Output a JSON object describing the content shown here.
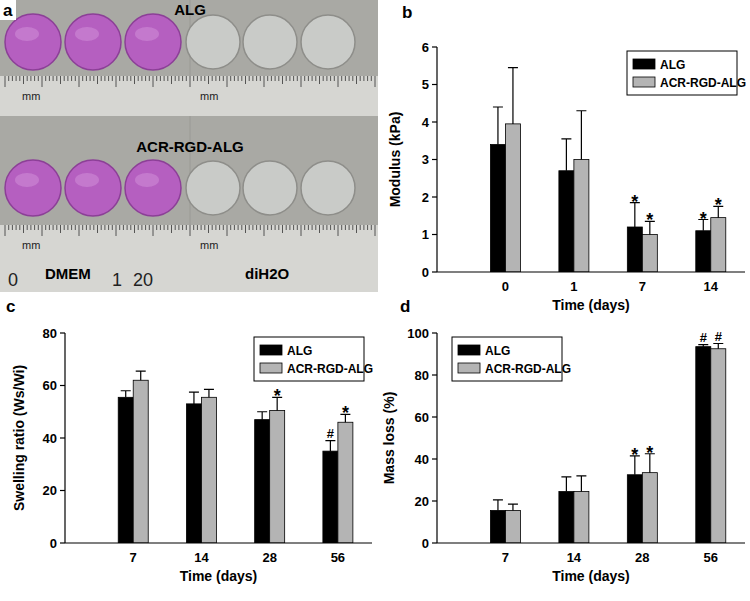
{
  "photo": {
    "title": "a",
    "samples": [
      "ALG",
      "ACR-RGD-ALG"
    ],
    "media": [
      "DMEM",
      "diH2O"
    ],
    "ruler_unit": "mm",
    "ruler_numbers": [
      "0",
      "1",
      "20"
    ]
  },
  "chart_data": [
    {
      "type": "bar",
      "title": "b",
      "x_label": "Time (days)",
      "y_label": "Modulus (kPa)",
      "categories": [
        "0",
        "1",
        "7",
        "14"
      ],
      "series": [
        {
          "name": "ALG",
          "color": "#000000",
          "values": [
            3.4,
            2.7,
            1.2,
            1.1
          ],
          "errors": [
            1.0,
            0.85,
            0.65,
            0.3
          ],
          "significance": [
            null,
            null,
            "*",
            "*"
          ]
        },
        {
          "name": "ACR-RGD-ALG",
          "color": "#b4b4b4",
          "values": [
            3.95,
            3.0,
            1.0,
            1.45
          ],
          "errors": [
            1.5,
            1.3,
            0.35,
            0.3
          ],
          "significance": [
            null,
            null,
            "*",
            "*"
          ]
        }
      ],
      "ylim": [
        0,
        6
      ],
      "yticks": [
        0,
        1,
        2,
        3,
        4,
        5,
        6
      ],
      "grid": false,
      "legend": "upper right"
    },
    {
      "type": "bar",
      "title": "c",
      "x_label": "Time (days)",
      "y_label": "Swelling ratio (Ws/Wi)",
      "categories": [
        "7",
        "14",
        "28",
        "56"
      ],
      "series": [
        {
          "name": "ALG",
          "color": "#000000",
          "values": [
            55.5,
            53,
            47,
            35
          ],
          "errors": [
            2.5,
            4.5,
            3,
            4
          ],
          "significance": [
            null,
            null,
            null,
            "#"
          ]
        },
        {
          "name": "ACR-RGD-ALG",
          "color": "#b4b4b4",
          "values": [
            62,
            55.5,
            50.5,
            46
          ],
          "errors": [
            3.5,
            3,
            5,
            3
          ],
          "significance": [
            null,
            null,
            "*",
            "*"
          ]
        }
      ],
      "ylim": [
        0,
        80
      ],
      "yticks": [
        0,
        20,
        40,
        60,
        80
      ],
      "grid": false,
      "legend": "upper right"
    },
    {
      "type": "bar",
      "title": "d",
      "x_label": "Time (days)",
      "y_label": "Mass loss (%)",
      "categories": [
        "7",
        "14",
        "28",
        "56"
      ],
      "series": [
        {
          "name": "ALG",
          "color": "#000000",
          "values": [
            15.5,
            24.5,
            32.5,
            93.5
          ],
          "errors": [
            5,
            7,
            9,
            1
          ],
          "significance": [
            null,
            null,
            "*",
            "#"
          ]
        },
        {
          "name": "ACR-RGD-ALG",
          "color": "#b4b4b4",
          "values": [
            15.5,
            24.5,
            33.5,
            92.5
          ],
          "errors": [
            3,
            7.5,
            9,
            2.5
          ],
          "significance": [
            null,
            null,
            "*",
            "#"
          ]
        }
      ],
      "ylim": [
        0,
        100
      ],
      "yticks": [
        0,
        20,
        40,
        60,
        80,
        100
      ],
      "grid": false,
      "legend": "upper left"
    }
  ]
}
